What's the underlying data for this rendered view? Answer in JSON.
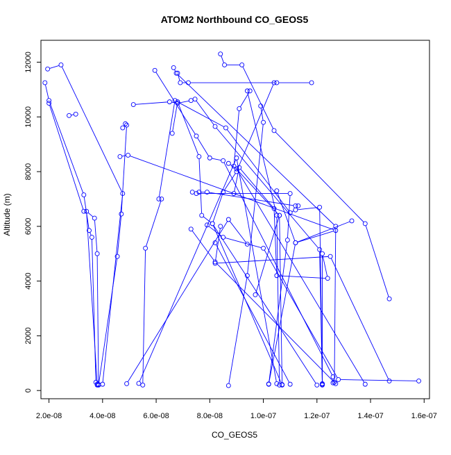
{
  "chart_data": {
    "type": "line",
    "title": "ATOM2 Northbound CO_GEOS5",
    "xlabel": "CO_GEOS5",
    "ylabel": "Altitude (m)",
    "xlim": [
      1.7e-08,
      1.62e-07
    ],
    "ylim": [
      -300,
      12800
    ],
    "x_ticks": [
      2e-08,
      4e-08,
      6e-08,
      8e-08,
      1e-07,
      1.2e-07,
      1.4e-07,
      1.6e-07
    ],
    "x_tick_labels": [
      "2.0e-08",
      "4.0e-08",
      "6.0e-08",
      "8.0e-08",
      "1.0e-07",
      "1.2e-07",
      "1.4e-07",
      "1.6e-07"
    ],
    "y_ticks": [
      0,
      2000,
      4000,
      6000,
      8000,
      10000,
      12000
    ],
    "y_tick_labels": [
      "0",
      "2000",
      "4000",
      "6000",
      "8000",
      "10000",
      "12000"
    ],
    "grid": false,
    "series_color": "#0000ff",
    "series": [
      {
        "x": [
          1.85e-08,
          2e-08,
          3.3e-08,
          3.5e-08,
          3.6e-08,
          3.75e-08,
          3.8e-08,
          3.8e-08,
          3.4e-08,
          3.7e-08,
          3.8e-08,
          3.85e-08
        ],
        "y": [
          11250,
          10600,
          7150,
          5850,
          5600,
          300,
          200,
          230,
          6550,
          6300,
          5000,
          220
        ]
      },
      {
        "x": [
          1.95e-08,
          2.45e-08,
          4.75e-08,
          4e-08
        ],
        "y": [
          11750,
          11900,
          7200,
          230
        ]
      },
      {
        "x": [
          2e-08,
          3.3e-08
        ],
        "y": [
          10500,
          6550
        ]
      },
      {
        "x": [
          2.75e-08,
          3e-08
        ],
        "y": [
          10050,
          10100
        ]
      },
      {
        "x": [
          4.75e-08,
          4.85e-08,
          4.9e-08,
          4.7e-08,
          4.55e-08,
          3.85e-08
        ],
        "y": [
          9600,
          9750,
          9700,
          6450,
          4900,
          200
        ]
      },
      {
        "x": [
          4.65e-08,
          4.95e-08,
          1.27e-07,
          1.12e-07,
          1.02e-07
        ],
        "y": [
          8550,
          8600,
          5850,
          5400,
          240
        ]
      },
      {
        "x": [
          5.15e-08,
          6.5e-08,
          6.8e-08,
          7.3e-08,
          7.45e-08,
          8.2e-08,
          1.21e-07,
          1.22e-07
        ],
        "y": [
          10450,
          10550,
          10500,
          10600,
          10650,
          9650,
          5150,
          200
        ]
      },
      {
        "x": [
          5.95e-08,
          7.5e-08,
          8e-08,
          8.5e-08,
          1.26e-07,
          1.26e-07
        ],
        "y": [
          11700,
          9300,
          8500,
          8400,
          500,
          280
        ]
      },
      {
        "x": [
          6.65e-08,
          6.75e-08,
          1.27e-07,
          1.265e-07
        ],
        "y": [
          11800,
          11600,
          6000,
          300
        ]
      },
      {
        "x": [
          6.8e-08,
          6.9e-08,
          7.2e-08,
          1.05e-07,
          1.18e-07
        ],
        "y": [
          11600,
          11250,
          11250,
          11250,
          11250
        ]
      },
      {
        "x": [
          6.6e-08,
          6.8e-08,
          7.6e-08,
          7.7e-08,
          8.1e-08,
          1.07e-07
        ],
        "y": [
          9400,
          10550,
          8550,
          6400,
          6100,
          200
        ]
      },
      {
        "x": [
          6.1e-08,
          6.7e-08,
          8.6e-08,
          1.1e-07,
          1.12e-07,
          1.21e-07,
          1.22e-07
        ],
        "y": [
          7000,
          10600,
          9600,
          6500,
          6600,
          6700,
          250
        ]
      },
      {
        "x": [
          8.4e-08,
          8.55e-08,
          9.2e-08,
          1.04e-07,
          1.38e-07,
          1.47e-07
        ],
        "y": [
          12300,
          11900,
          11900,
          9500,
          6100,
          3350
        ]
      },
      {
        "x": [
          9.5e-08,
          9.1e-08,
          8.9e-08,
          1.06e-07,
          1.07e-07
        ],
        "y": [
          10950,
          10300,
          8200,
          6400,
          220
        ]
      },
      {
        "x": [
          9.4e-08,
          1.05e-07,
          1.06e-07
        ],
        "y": [
          10950,
          6400,
          200
        ]
      },
      {
        "x": [
          9.9e-08,
          1e-07,
          9.4e-08,
          8.7e-08
        ],
        "y": [
          10400,
          9800,
          4200,
          180
        ]
      },
      {
        "x": [
          1.04e-07,
          9e-08,
          8.5e-08,
          8.1e-08,
          1.2e-07
        ],
        "y": [
          11250,
          8000,
          7250,
          6100,
          200
        ]
      },
      {
        "x": [
          8.9e-08,
          9.1e-08,
          1.04e-07,
          1.05e-07,
          1.24e-07,
          1.22e-07,
          1.22e-07
        ],
        "y": [
          7200,
          8150,
          6650,
          4200,
          4100,
          5000,
          230
        ]
      },
      {
        "x": [
          8.7e-08,
          9e-08,
          1.38e-07
        ],
        "y": [
          8300,
          8100,
          230
        ]
      },
      {
        "x": [
          7.35e-08,
          7.5e-08,
          1.1e-07,
          1.09e-07,
          1.02e-07
        ],
        "y": [
          7250,
          7200,
          7200,
          5500,
          230
        ]
      },
      {
        "x": [
          7.6e-08,
          7.9e-08,
          1.12e-07,
          1.13e-07
        ],
        "y": [
          7250,
          7250,
          6750,
          6750
        ]
      },
      {
        "x": [
          7.9e-08,
          8.5e-08,
          1e-07,
          1.28e-07,
          1.58e-07
        ],
        "y": [
          6050,
          5600,
          5200,
          400,
          350
        ]
      },
      {
        "x": [
          7.3e-08,
          8.2e-08,
          1.27e-07
        ],
        "y": [
          5900,
          4700,
          250
        ]
      },
      {
        "x": [
          8.4e-08,
          8.2e-08,
          1.25e-07,
          1.47e-07
        ],
        "y": [
          6000,
          4650,
          4900,
          350
        ]
      },
      {
        "x": [
          9.4e-08,
          8.7e-08,
          4.9e-08
        ],
        "y": [
          5350,
          6250,
          250
        ]
      },
      {
        "x": [
          5.35e-08,
          9e-08,
          1.05e-07
        ],
        "y": [
          260,
          8500,
          250
        ]
      },
      {
        "x": [
          5.5e-08,
          5.6e-08,
          6.2e-08
        ],
        "y": [
          200,
          5200,
          7000
        ]
      },
      {
        "x": [
          8.2e-08,
          1.1e-07
        ],
        "y": [
          5400,
          230
        ]
      },
      {
        "x": [
          9.7e-08,
          1.06e-07
        ],
        "y": [
          3500,
          6400
        ]
      },
      {
        "x": [
          1.05e-07,
          1.12e-07,
          1.33e-07
        ],
        "y": [
          7300,
          5400,
          6200
        ]
      }
    ]
  }
}
